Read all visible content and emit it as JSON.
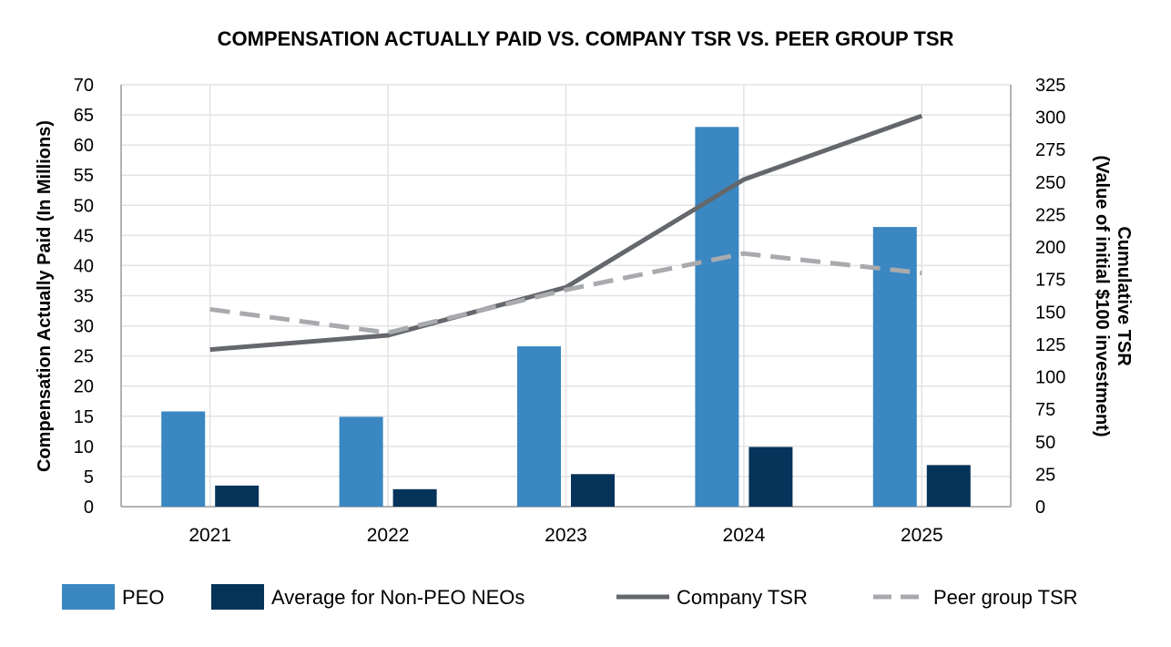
{
  "chart_data": {
    "type": "bar",
    "title": "COMPENSATION ACTUALLY PAID VS. COMPANY TSR VS. PEER GROUP TSR",
    "ylabel": "Compensation Actually Paid (In Millions)",
    "y2label_line1": "Cumulative TSR",
    "y2label_line2": "(Value of initial $100 investment)",
    "categories": [
      "2021",
      "2022",
      "2023",
      "2024",
      "2025"
    ],
    "ylim": [
      0,
      70
    ],
    "yticks": [
      0,
      5,
      10,
      15,
      20,
      25,
      30,
      35,
      40,
      45,
      50,
      55,
      60,
      65,
      70
    ],
    "y2lim": [
      0,
      325
    ],
    "y2ticks": [
      0,
      25,
      50,
      75,
      100,
      125,
      150,
      175,
      200,
      225,
      250,
      275,
      300,
      325
    ],
    "grid": true,
    "legend_position": "bottom",
    "series": [
      {
        "name": "PEO",
        "type": "bar",
        "axis": "left",
        "color": "#3a87c2",
        "values": [
          15.8,
          14.9,
          26.6,
          63.0,
          46.4
        ]
      },
      {
        "name": "Average for Non-PEO NEOs",
        "type": "bar",
        "axis": "left",
        "color": "#05335a",
        "values": [
          3.5,
          2.9,
          5.4,
          9.9,
          6.9
        ]
      },
      {
        "name": "Company TSR",
        "type": "line",
        "axis": "right",
        "color": "#64676b",
        "style": "solid",
        "values": [
          121,
          132,
          169,
          252,
          301
        ]
      },
      {
        "name": "Peer group TSR",
        "type": "line",
        "axis": "right",
        "color": "#a8aaad",
        "style": "dashed",
        "values": [
          152,
          134,
          167,
          195,
          180
        ]
      }
    ]
  }
}
